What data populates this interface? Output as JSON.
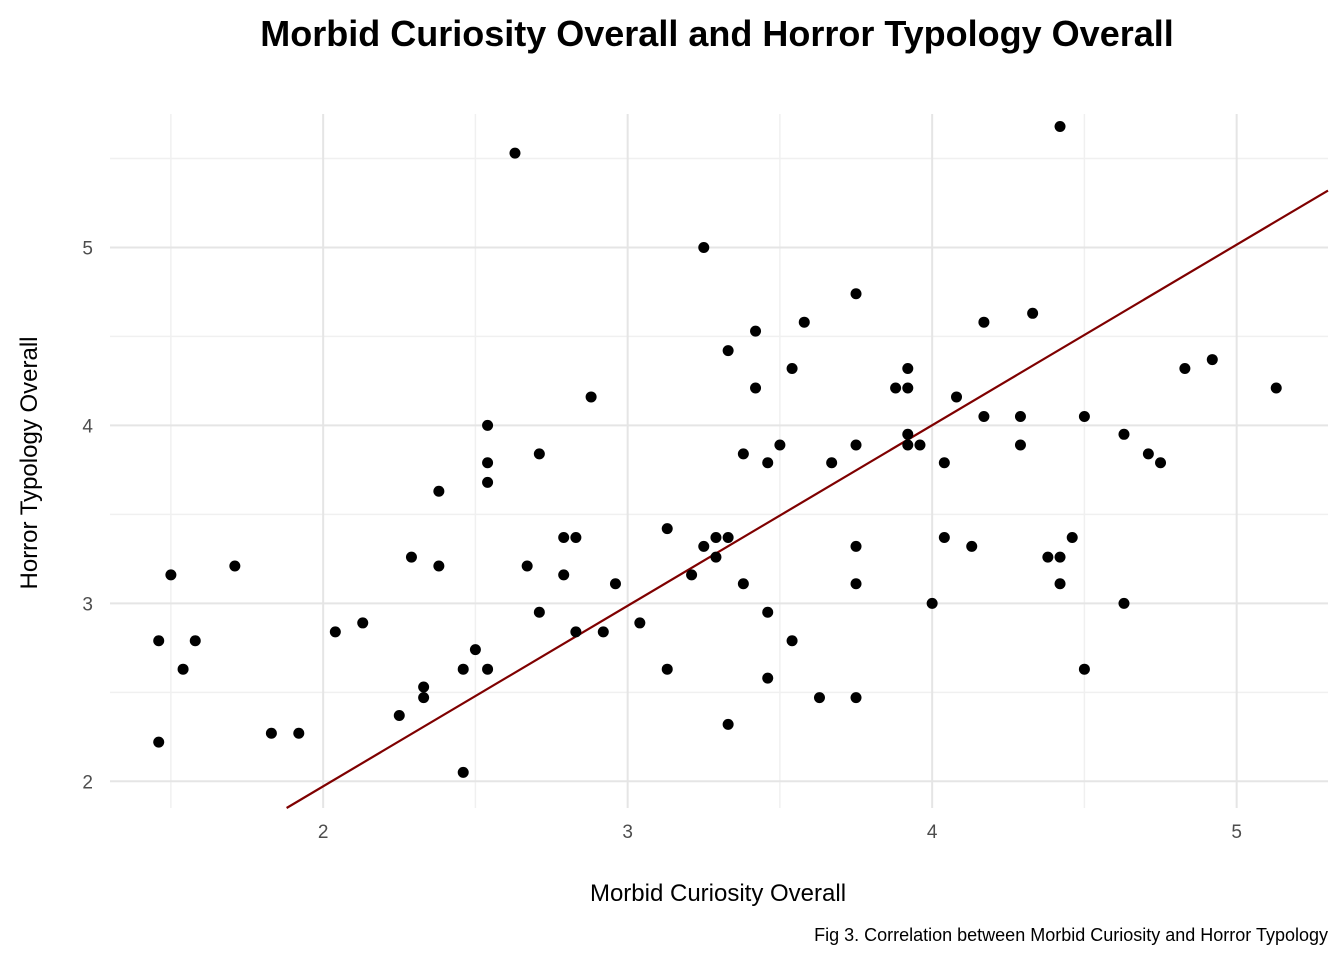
{
  "chart_data": {
    "type": "scatter",
    "title": "Morbid Curiosity Overall and Horror Typology Overall",
    "xlabel": "Morbid Curiosity Overall",
    "ylabel": "Horror Typology Overall",
    "caption": "Fig 3. Correlation between Morbid Curiosity and Horror Typology",
    "xlim": [
      1.3,
      5.3
    ],
    "ylim": [
      1.85,
      5.75
    ],
    "x_ticks": [
      "2",
      "3",
      "4",
      "5"
    ],
    "y_ticks": [
      "2",
      "3",
      "4",
      "5"
    ],
    "grid": true,
    "colors": {
      "points": "#000000",
      "trend_line": "#7f0000"
    },
    "trend_line": {
      "x": [
        1.88,
        5.3
      ],
      "y": [
        1.85,
        5.32
      ]
    },
    "points": [
      {
        "x": 1.46,
        "y": 2.22
      },
      {
        "x": 1.46,
        "y": 2.79
      },
      {
        "x": 1.5,
        "y": 3.16
      },
      {
        "x": 1.54,
        "y": 2.63
      },
      {
        "x": 1.58,
        "y": 2.79
      },
      {
        "x": 1.71,
        "y": 3.21
      },
      {
        "x": 1.83,
        "y": 2.27
      },
      {
        "x": 1.92,
        "y": 2.27
      },
      {
        "x": 2.04,
        "y": 2.84
      },
      {
        "x": 2.13,
        "y": 2.89
      },
      {
        "x": 2.25,
        "y": 2.37
      },
      {
        "x": 2.29,
        "y": 3.26
      },
      {
        "x": 2.33,
        "y": 2.53
      },
      {
        "x": 2.33,
        "y": 2.47
      },
      {
        "x": 2.38,
        "y": 3.63
      },
      {
        "x": 2.38,
        "y": 3.21
      },
      {
        "x": 2.46,
        "y": 2.05
      },
      {
        "x": 2.46,
        "y": 2.63
      },
      {
        "x": 2.5,
        "y": 2.74
      },
      {
        "x": 2.54,
        "y": 4.0
      },
      {
        "x": 2.54,
        "y": 3.79
      },
      {
        "x": 2.54,
        "y": 3.68
      },
      {
        "x": 2.54,
        "y": 2.63
      },
      {
        "x": 2.63,
        "y": 5.53
      },
      {
        "x": 2.67,
        "y": 3.21
      },
      {
        "x": 2.71,
        "y": 3.84
      },
      {
        "x": 2.71,
        "y": 2.95
      },
      {
        "x": 2.79,
        "y": 3.37
      },
      {
        "x": 2.79,
        "y": 3.16
      },
      {
        "x": 2.83,
        "y": 3.37
      },
      {
        "x": 2.83,
        "y": 2.84
      },
      {
        "x": 2.88,
        "y": 4.16
      },
      {
        "x": 2.92,
        "y": 2.84
      },
      {
        "x": 2.96,
        "y": 3.11
      },
      {
        "x": 3.04,
        "y": 2.89
      },
      {
        "x": 3.13,
        "y": 3.42
      },
      {
        "x": 3.13,
        "y": 2.63
      },
      {
        "x": 3.21,
        "y": 3.16
      },
      {
        "x": 3.25,
        "y": 5.0
      },
      {
        "x": 3.25,
        "y": 3.32
      },
      {
        "x": 3.29,
        "y": 3.37
      },
      {
        "x": 3.29,
        "y": 3.26
      },
      {
        "x": 3.33,
        "y": 4.42
      },
      {
        "x": 3.33,
        "y": 3.37
      },
      {
        "x": 3.33,
        "y": 2.32
      },
      {
        "x": 3.38,
        "y": 3.84
      },
      {
        "x": 3.38,
        "y": 3.11
      },
      {
        "x": 3.42,
        "y": 4.53
      },
      {
        "x": 3.42,
        "y": 4.21
      },
      {
        "x": 3.46,
        "y": 3.79
      },
      {
        "x": 3.46,
        "y": 2.95
      },
      {
        "x": 3.46,
        "y": 2.58
      },
      {
        "x": 3.5,
        "y": 3.89
      },
      {
        "x": 3.54,
        "y": 4.32
      },
      {
        "x": 3.54,
        "y": 2.79
      },
      {
        "x": 3.58,
        "y": 4.58
      },
      {
        "x": 3.63,
        "y": 2.47
      },
      {
        "x": 3.67,
        "y": 3.79
      },
      {
        "x": 3.75,
        "y": 4.74
      },
      {
        "x": 3.75,
        "y": 3.89
      },
      {
        "x": 3.75,
        "y": 3.32
      },
      {
        "x": 3.75,
        "y": 3.11
      },
      {
        "x": 3.75,
        "y": 2.47
      },
      {
        "x": 3.88,
        "y": 4.21
      },
      {
        "x": 3.92,
        "y": 4.32
      },
      {
        "x": 3.92,
        "y": 4.21
      },
      {
        "x": 3.92,
        "y": 3.95
      },
      {
        "x": 3.92,
        "y": 3.89
      },
      {
        "x": 3.96,
        "y": 3.89
      },
      {
        "x": 4.0,
        "y": 3.0
      },
      {
        "x": 4.04,
        "y": 3.79
      },
      {
        "x": 4.04,
        "y": 3.37
      },
      {
        "x": 4.08,
        "y": 4.16
      },
      {
        "x": 4.13,
        "y": 3.32
      },
      {
        "x": 4.17,
        "y": 4.58
      },
      {
        "x": 4.17,
        "y": 4.05
      },
      {
        "x": 4.29,
        "y": 4.05
      },
      {
        "x": 4.29,
        "y": 3.89
      },
      {
        "x": 4.33,
        "y": 4.63
      },
      {
        "x": 4.38,
        "y": 3.26
      },
      {
        "x": 4.42,
        "y": 5.68
      },
      {
        "x": 4.42,
        "y": 3.26
      },
      {
        "x": 4.42,
        "y": 3.11
      },
      {
        "x": 4.46,
        "y": 3.37
      },
      {
        "x": 4.5,
        "y": 4.05
      },
      {
        "x": 4.5,
        "y": 2.63
      },
      {
        "x": 4.63,
        "y": 3.95
      },
      {
        "x": 4.63,
        "y": 3.0
      },
      {
        "x": 4.71,
        "y": 3.84
      },
      {
        "x": 4.75,
        "y": 3.79
      },
      {
        "x": 4.83,
        "y": 4.32
      },
      {
        "x": 4.92,
        "y": 4.37
      },
      {
        "x": 5.13,
        "y": 4.21
      }
    ]
  }
}
